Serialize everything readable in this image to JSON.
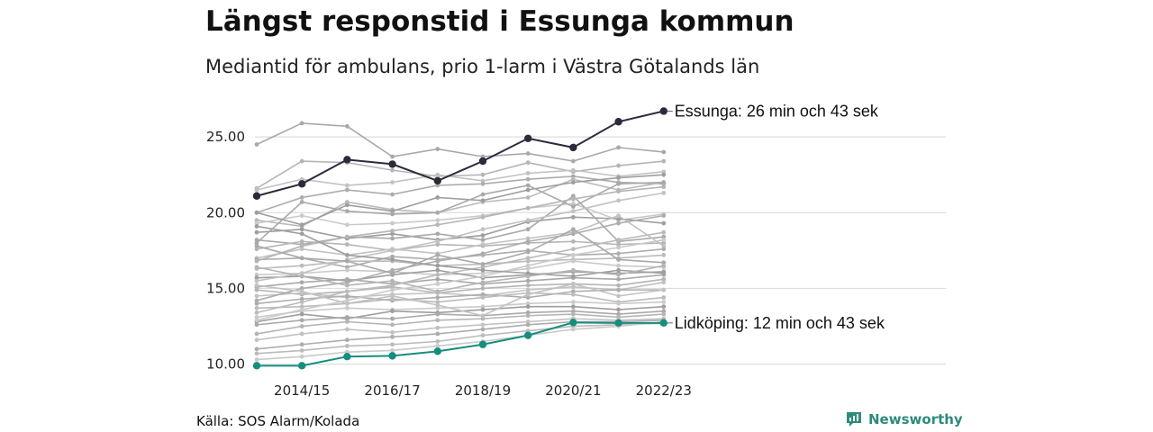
{
  "title": "Längst responstid i Essunga kommun",
  "subtitle": "Mediantid för ambulans, prio 1-larm i Västra Götalands län",
  "source": "Källa: SOS Alarm/Kolada",
  "brand": {
    "name": "Newsworthy",
    "icon": "newsworthy-logo-icon",
    "color": "#2e8b7c"
  },
  "colors": {
    "highlight_high": "#2b2b3b",
    "highlight_low": "#178d7e",
    "background_lines": "#b4b4b4",
    "grid": "#dddddd"
  },
  "chart_data": {
    "type": "line",
    "x": [
      "2013/14",
      "2014/15",
      "2015/16",
      "2016/17",
      "2017/18",
      "2018/19",
      "2019/20",
      "2020/21",
      "2021/22",
      "2022/23"
    ],
    "x_tick_labels": [
      "2014/15",
      "2016/17",
      "2018/19",
      "2020/21",
      "2022/23"
    ],
    "y_ticks": [
      "10.00",
      "15.00",
      "20.00",
      "25.00"
    ],
    "ylim": [
      9.8,
      27.5
    ],
    "grid": "horizontal",
    "legend": "none",
    "highlighted": [
      {
        "name": "Essunga",
        "label": "Essunga: 26 min och 43 sek",
        "role": "high",
        "values": [
          21.1,
          21.9,
          23.5,
          23.2,
          22.1,
          23.4,
          24.9,
          24.3,
          26.0,
          26.7
        ]
      },
      {
        "name": "Lidköping",
        "label": "Lidköping: 12 min och 43 sek",
        "role": "low",
        "values": [
          9.9,
          9.9,
          10.5,
          10.55,
          10.85,
          11.3,
          11.9,
          12.75,
          12.72,
          12.72
        ]
      }
    ],
    "background_series": [
      [
        24.5,
        25.9,
        25.7,
        23.7,
        24.2,
        23.7,
        23.9,
        23.4,
        24.3,
        24.0
      ],
      [
        21.6,
        23.4,
        23.3,
        22.8,
        22.4,
        22.5,
        23.3,
        22.7,
        23.1,
        23.4
      ],
      [
        21.5,
        22.2,
        21.8,
        22.0,
        22.5,
        22.1,
        22.6,
        22.8,
        22.4,
        22.7
      ],
      [
        20.0,
        21.0,
        21.5,
        21.2,
        21.8,
        21.9,
        22.2,
        22.4,
        22.0,
        21.9
      ],
      [
        19.5,
        19.1,
        20.7,
        20.2,
        20.0,
        20.7,
        21.0,
        22.2,
        21.5,
        22.0
      ],
      [
        19.3,
        19.8,
        19.2,
        19.3,
        19.5,
        19.8,
        20.3,
        20.6,
        19.5,
        19.9
      ],
      [
        18.7,
        18.9,
        18.3,
        18.6,
        18.2,
        18.5,
        19.4,
        19.7,
        19.6,
        19.3
      ],
      [
        18.2,
        17.9,
        18.4,
        18.3,
        18.6,
        18.2,
        18.9,
        21.1,
        18.1,
        18.4
      ],
      [
        17.6,
        18.1,
        17.9,
        17.5,
        17.9,
        17.8,
        18.0,
        18.1,
        17.9,
        18.0
      ],
      [
        17.0,
        17.6,
        17.2,
        17.6,
        17.3,
        17.9,
        18.3,
        18.7,
        19.8,
        17.8
      ],
      [
        16.9,
        17.0,
        16.4,
        17.1,
        16.9,
        17.2,
        17.5,
        17.2,
        17.3,
        17.6
      ],
      [
        16.3,
        16.5,
        16.8,
        16.8,
        16.5,
        16.6,
        16.8,
        16.9,
        17.0,
        17.2
      ],
      [
        15.9,
        16.0,
        16.2,
        16.1,
        15.9,
        16.0,
        16.3,
        16.8,
        16.5,
        16.4
      ],
      [
        15.7,
        15.8,
        15.5,
        15.9,
        16.2,
        15.7,
        15.9,
        16.1,
        16.0,
        16.1
      ],
      [
        15.1,
        15.4,
        15.6,
        15.3,
        15.6,
        15.3,
        15.5,
        15.7,
        15.6,
        15.9
      ],
      [
        14.9,
        14.6,
        14.8,
        15.1,
        14.7,
        15.0,
        15.2,
        15.3,
        15.2,
        15.6
      ],
      [
        14.5,
        14.7,
        14.4,
        14.6,
        14.7,
        14.5,
        14.9,
        15.1,
        14.9,
        15.4
      ],
      [
        14.0,
        14.3,
        14.5,
        14.2,
        14.4,
        14.6,
        14.4,
        14.8,
        14.9,
        14.9
      ],
      [
        13.7,
        13.8,
        14.0,
        14.3,
        14.1,
        14.4,
        14.7,
        14.6,
        14.1,
        14.4
      ],
      [
        13.1,
        13.5,
        13.7,
        13.6,
        13.7,
        13.8,
        14.0,
        14.1,
        14.0,
        14.1
      ],
      [
        12.8,
        13.3,
        13.0,
        13.5,
        13.4,
        13.6,
        13.8,
        13.8,
        13.6,
        13.8
      ],
      [
        12.6,
        12.9,
        13.1,
        13.0,
        13.3,
        13.2,
        13.4,
        13.5,
        13.3,
        13.5
      ],
      [
        12.0,
        12.5,
        12.8,
        12.6,
        12.9,
        13.0,
        13.2,
        13.3,
        13.1,
        13.3
      ],
      [
        11.6,
        12.0,
        12.3,
        12.1,
        12.4,
        12.6,
        12.8,
        13.0,
        12.9,
        13.0
      ],
      [
        11.0,
        11.3,
        11.6,
        11.8,
        12.0,
        12.3,
        12.6,
        12.8,
        12.8,
        12.9
      ],
      [
        10.7,
        10.9,
        11.2,
        11.3,
        11.5,
        11.9,
        12.2,
        12.5,
        12.6,
        12.7
      ],
      [
        10.3,
        10.5,
        10.8,
        10.9,
        11.2,
        11.5,
        11.9,
        12.3,
        12.5,
        12.8
      ],
      [
        20.0,
        19.2,
        20.5,
        20.1,
        21.0,
        20.8,
        21.5,
        22.0,
        22.3,
        22.5
      ],
      [
        18.0,
        20.7,
        20.1,
        19.9,
        20.0,
        21.2,
        21.8,
        20.4,
        21.9,
        22.0
      ],
      [
        16.8,
        17.8,
        18.4,
        18.8,
        19.2,
        19.7,
        20.3,
        20.9,
        21.4,
        21.7
      ],
      [
        15.5,
        16.0,
        16.9,
        17.5,
        18.1,
        18.9,
        19.5,
        20.1,
        20.8,
        21.3
      ],
      [
        14.2,
        15.0,
        15.4,
        16.2,
        16.8,
        17.3,
        18.1,
        18.6,
        19.3,
        19.8
      ],
      [
        13.4,
        14.1,
        14.8,
        15.2,
        15.9,
        16.4,
        17.0,
        17.6,
        18.2,
        18.7
      ],
      [
        12.9,
        13.6,
        14.2,
        14.9,
        15.3,
        15.8,
        16.5,
        17.2,
        17.7,
        18.2
      ],
      [
        19.1,
        18.6,
        17.2,
        16.9,
        16.5,
        16.2,
        16.0,
        15.8,
        16.2,
        16.0
      ],
      [
        17.8,
        17.0,
        16.8,
        16.0,
        17.2,
        16.6,
        17.4,
        18.9,
        16.9,
        16.7
      ],
      [
        16.4,
        15.8,
        15.2,
        15.5,
        14.8,
        15.4,
        15.8,
        16.2,
        15.9,
        16.5
      ],
      [
        15.2,
        14.8,
        14.0,
        14.5,
        13.9,
        13.2,
        14.6,
        15.3,
        14.5,
        14.9
      ]
    ]
  }
}
